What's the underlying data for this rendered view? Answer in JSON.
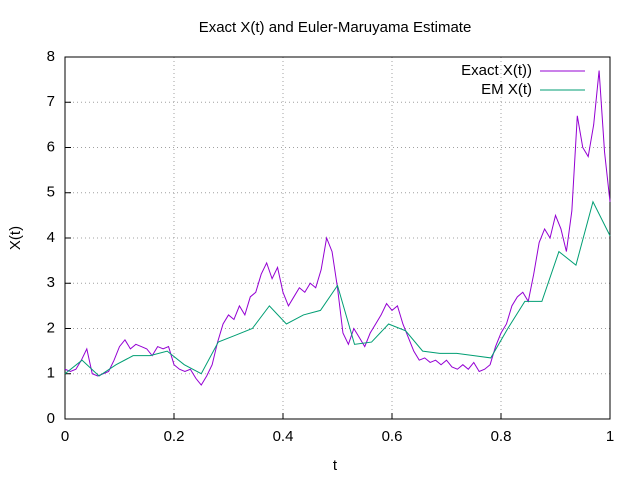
{
  "chart_data": {
    "type": "line",
    "title": "Exact X(t) and Euler-Maruyama Estimate",
    "x_label": "t",
    "y_label": "X(t)",
    "xlim": [
      0,
      1
    ],
    "ylim": [
      0,
      8
    ],
    "xticks": [
      0,
      0.2,
      0.4,
      0.6,
      0.8,
      1
    ],
    "yticks": [
      0,
      1,
      2,
      3,
      4,
      5,
      6,
      7,
      8
    ],
    "grid": true,
    "legend": "top-right",
    "series": [
      {
        "name": "Exact X(t))",
        "color": "#9400d3",
        "x": [
          0,
          0.01,
          0.02,
          0.03,
          0.04,
          0.05,
          0.06,
          0.07,
          0.08,
          0.09,
          0.1,
          0.11,
          0.12,
          0.13,
          0.14,
          0.15,
          0.16,
          0.17,
          0.18,
          0.19,
          0.2,
          0.21,
          0.22,
          0.23,
          0.24,
          0.25,
          0.26,
          0.27,
          0.28,
          0.29,
          0.3,
          0.31,
          0.32,
          0.33,
          0.34,
          0.35,
          0.36,
          0.37,
          0.38,
          0.39,
          0.4,
          0.41,
          0.42,
          0.43,
          0.44,
          0.45,
          0.46,
          0.47,
          0.48,
          0.49,
          0.5,
          0.51,
          0.52,
          0.53,
          0.54,
          0.55,
          0.56,
          0.57,
          0.58,
          0.59,
          0.6,
          0.61,
          0.62,
          0.63,
          0.64,
          0.65,
          0.66,
          0.67,
          0.68,
          0.69,
          0.7,
          0.71,
          0.72,
          0.73,
          0.74,
          0.75,
          0.76,
          0.77,
          0.78,
          0.79,
          0.8,
          0.81,
          0.82,
          0.83,
          0.84,
          0.85,
          0.86,
          0.87,
          0.88,
          0.89,
          0.9,
          0.91,
          0.92,
          0.93,
          0.94,
          0.95,
          0.96,
          0.97,
          0.98,
          0.99,
          1
        ],
        "values": [
          1.1,
          1.05,
          1.1,
          1.3,
          1.55,
          1.0,
          0.95,
          1.0,
          1.05,
          1.3,
          1.6,
          1.75,
          1.55,
          1.65,
          1.6,
          1.55,
          1.4,
          1.6,
          1.55,
          1.6,
          1.2,
          1.1,
          1.05,
          1.1,
          0.9,
          0.75,
          0.95,
          1.2,
          1.7,
          2.1,
          2.3,
          2.2,
          2.5,
          2.3,
          2.7,
          2.8,
          3.2,
          3.45,
          3.1,
          3.35,
          2.8,
          2.5,
          2.7,
          2.9,
          2.8,
          3.0,
          2.9,
          3.3,
          4.0,
          3.7,
          2.9,
          1.9,
          1.65,
          2.0,
          1.8,
          1.6,
          1.9,
          2.1,
          2.3,
          2.55,
          2.4,
          2.5,
          2.1,
          1.8,
          1.5,
          1.3,
          1.35,
          1.25,
          1.3,
          1.2,
          1.3,
          1.15,
          1.1,
          1.2,
          1.1,
          1.25,
          1.05,
          1.1,
          1.2,
          1.6,
          1.9,
          2.1,
          2.5,
          2.7,
          2.8,
          2.6,
          3.2,
          3.9,
          4.2,
          4.0,
          4.5,
          4.2,
          3.7,
          4.6,
          6.7,
          6.0,
          5.8,
          6.5,
          7.7,
          5.9,
          4.8
        ]
      },
      {
        "name": "EM X(t)",
        "color": "#009e73",
        "x": [
          0,
          0.03125,
          0.0625,
          0.09375,
          0.125,
          0.15625,
          0.1875,
          0.21875,
          0.25,
          0.28125,
          0.3125,
          0.34375,
          0.375,
          0.40625,
          0.4375,
          0.46875,
          0.5,
          0.53125,
          0.5625,
          0.59375,
          0.625,
          0.65625,
          0.6875,
          0.71875,
          0.75,
          0.78125,
          0.8125,
          0.84375,
          0.875,
          0.90625,
          0.9375,
          0.96875,
          1
        ],
        "values": [
          1.0,
          1.3,
          0.95,
          1.2,
          1.4,
          1.4,
          1.5,
          1.2,
          1.0,
          1.7,
          1.85,
          2.0,
          2.5,
          2.1,
          2.3,
          2.4,
          2.95,
          1.65,
          1.7,
          2.1,
          1.95,
          1.5,
          1.45,
          1.45,
          1.4,
          1.35,
          2.0,
          2.6,
          2.6,
          3.7,
          3.4,
          4.8,
          4.05
        ]
      }
    ]
  }
}
